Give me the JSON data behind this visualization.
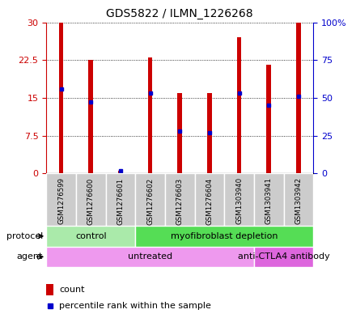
{
  "title": "GDS5822 / ILMN_1226268",
  "samples": [
    "GSM1276599",
    "GSM1276600",
    "GSM1276601",
    "GSM1276602",
    "GSM1276603",
    "GSM1276604",
    "GSM1303940",
    "GSM1303941",
    "GSM1303942"
  ],
  "counts": [
    30,
    22.5,
    0.5,
    23,
    16,
    16,
    27,
    21.5,
    30
  ],
  "percentiles": [
    56,
    47,
    1.5,
    53,
    28,
    27,
    53,
    45,
    51
  ],
  "ylim_left": [
    0,
    30
  ],
  "ylim_right": [
    0,
    100
  ],
  "yticks_left": [
    0,
    7.5,
    15,
    22.5,
    30
  ],
  "ytick_labels_left": [
    "0",
    "7.5",
    "15",
    "22.5",
    "30"
  ],
  "ytick_labels_right": [
    "0",
    "25",
    "50",
    "75",
    "100%"
  ],
  "bar_color": "#cc0000",
  "dot_color": "#0000cc",
  "bar_width": 0.15,
  "protocol_groups": [
    {
      "label": "control",
      "start": 0,
      "end": 3,
      "color": "#aaeaaa"
    },
    {
      "label": "myofibroblast depletion",
      "start": 3,
      "end": 9,
      "color": "#55dd55"
    }
  ],
  "agent_groups": [
    {
      "label": "untreated",
      "start": 0,
      "end": 7,
      "color": "#ee99ee"
    },
    {
      "label": "anti-CTLA4 antibody",
      "start": 7,
      "end": 9,
      "color": "#dd66dd"
    }
  ],
  "protocol_label": "protocol",
  "agent_label": "agent",
  "legend_count_label": "count",
  "legend_pct_label": "percentile rank within the sample",
  "background_color": "#ffffff",
  "left_axis_color": "#cc0000",
  "right_axis_color": "#0000cc",
  "sample_box_color": "#cccccc",
  "grid_linestyle": "dotted"
}
